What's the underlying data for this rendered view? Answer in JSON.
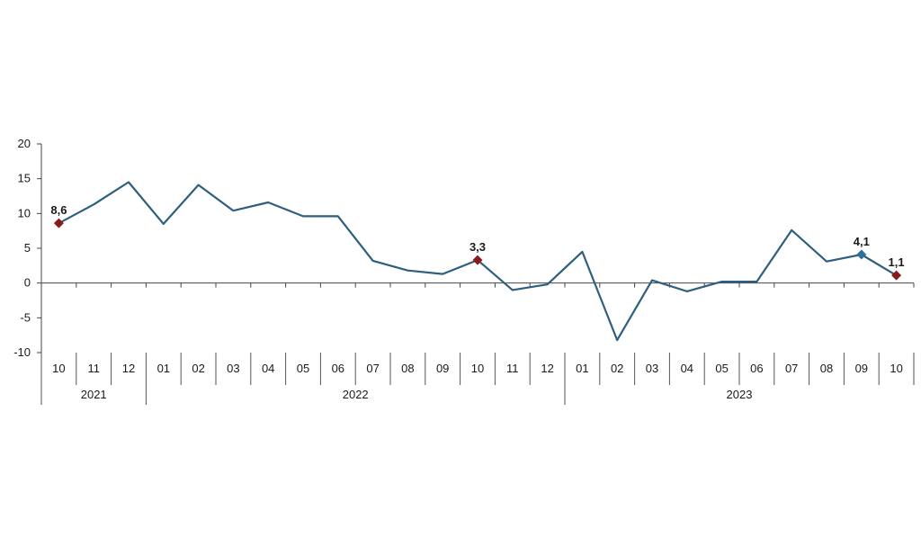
{
  "chart_data": {
    "type": "line",
    "ylim": [
      -10,
      20
    ],
    "yticks": [
      "20",
      "15",
      "10",
      "5",
      "0",
      "-5",
      "-10"
    ],
    "categories": [
      "10",
      "11",
      "12",
      "01",
      "02",
      "03",
      "04",
      "05",
      "06",
      "07",
      "08",
      "09",
      "10",
      "11",
      "12",
      "01",
      "02",
      "03",
      "04",
      "05",
      "06",
      "07",
      "08",
      "09",
      "10"
    ],
    "years": [
      {
        "label": "2021",
        "start": 0,
        "end": 2
      },
      {
        "label": "2022",
        "start": 3,
        "end": 14
      },
      {
        "label": "2023",
        "start": 15,
        "end": 24
      }
    ],
    "series": [
      {
        "values": [
          8.6,
          11.3,
          14.5,
          8.5,
          14.1,
          10.4,
          11.6,
          9.6,
          9.6,
          3.2,
          1.8,
          1.3,
          3.3,
          -1.0,
          -0.2,
          4.5,
          -8.2,
          0.4,
          -1.2,
          0.2,
          0.2,
          7.6,
          3.1,
          4.1,
          1.1
        ],
        "color": "#2e5f7e"
      }
    ],
    "highlights": [
      {
        "index": 0,
        "label": "8,6",
        "color": "#8b1a1a"
      },
      {
        "index": 12,
        "label": "3,3",
        "color": "#8b1a1a"
      },
      {
        "index": 23,
        "label": "4,1",
        "color": "#2e6f9e"
      },
      {
        "index": 24,
        "label": "1,1",
        "color": "#8b1a1a"
      }
    ],
    "grid": false
  }
}
